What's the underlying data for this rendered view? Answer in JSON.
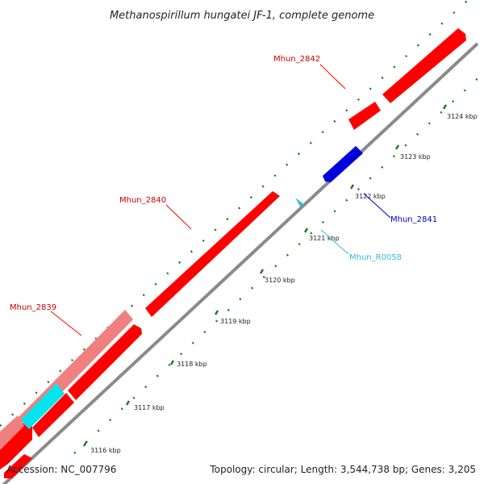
{
  "title": "Methanospirillum hungatei JF-1, complete genome",
  "footer": {
    "accession": "Accession: NC_007796",
    "summary": "Topology: circular; Length: 3,544,738 bp; Genes: 3,205"
  },
  "colors": {
    "backbone": "#8a8a8a",
    "tick_green": "#1f7a1f",
    "cds_red": "#ff0000",
    "cds_pink": "#f08080",
    "cds_blue": "#0000dd",
    "rna_cyan": "#00e5ee",
    "trna_lightblue": "#33bbdd"
  },
  "ticks": [
    {
      "label": "3116 kbp"
    },
    {
      "label": "3117 kbp"
    },
    {
      "label": "3118 kbp"
    },
    {
      "label": "3119 kbp"
    },
    {
      "label": "3120 kbp"
    },
    {
      "label": "3121 kbp"
    },
    {
      "label": "3122 kbp"
    },
    {
      "label": "3123 kbp"
    },
    {
      "label": "3124 kbp"
    }
  ],
  "genes": [
    {
      "name": "Mhun_2839",
      "color": "#ff0000"
    },
    {
      "name": "Mhun_2840",
      "color": "#ff0000"
    },
    {
      "name": "Mhun_2841",
      "color": "#0000cc"
    },
    {
      "name": "Mhun_R0058",
      "color": "#33bbdd"
    },
    {
      "name": "Mhun_2842",
      "color": "#ff0000"
    }
  ]
}
